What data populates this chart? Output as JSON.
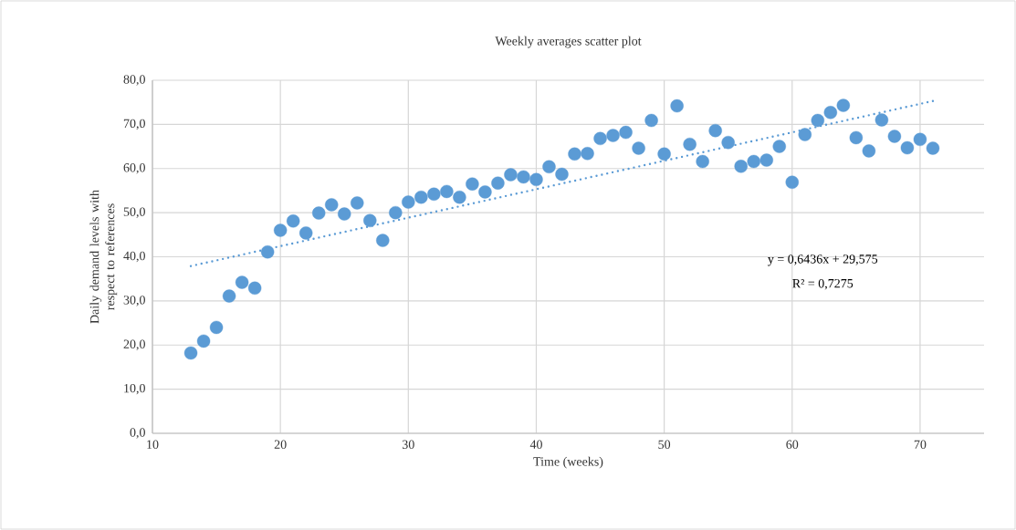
{
  "chart_data": {
    "type": "scatter",
    "title": "Weekly averages scatter plot",
    "xlabel": "Time (weeks)",
    "ylabel": "Daily demand levels with respect to references",
    "x": [
      13,
      14,
      15,
      16,
      17,
      18,
      19,
      20,
      21,
      22,
      23,
      24,
      25,
      26,
      27,
      28,
      29,
      30,
      31,
      32,
      33,
      34,
      35,
      36,
      37,
      38,
      39,
      40,
      41,
      42,
      43,
      44,
      45,
      46,
      47,
      48,
      49,
      50,
      51,
      52,
      53,
      54,
      55,
      56,
      57,
      58,
      59,
      60,
      61,
      62,
      63,
      64,
      65,
      66,
      67,
      68,
      69,
      70,
      71
    ],
    "series": [
      {
        "color": "#5b9bd5",
        "marker": "circle",
        "values": [
          18.2,
          20.9,
          24.0,
          31.1,
          34.2,
          32.9,
          41.1,
          46.0,
          48.1,
          45.4,
          49.9,
          51.8,
          49.7,
          52.2,
          48.2,
          43.7,
          50.0,
          52.4,
          53.5,
          54.2,
          54.8,
          53.5,
          56.5,
          54.7,
          56.7,
          58.6,
          58.1,
          57.5,
          60.4,
          58.7,
          63.3,
          63.4,
          66.8,
          67.5,
          68.2,
          64.6,
          70.9,
          63.3,
          74.2,
          65.5,
          61.6,
          68.6,
          65.9,
          60.5,
          61.6,
          61.9,
          65.0,
          56.9,
          67.7,
          70.9,
          72.7,
          74.3,
          67.0,
          64.0,
          71.0,
          67.3,
          64.7,
          66.6,
          64.6
        ]
      },
      {
        "type": "line",
        "color": "#5b9bd5",
        "line_style": "dotted",
        "marker": "none",
        "x": [
          13,
          71
        ],
        "values": [
          37.9,
          75.3
        ]
      }
    ],
    "annotations": [
      "y = 0,6436x + 29,575",
      "R² = 0,7275"
    ],
    "xlim": [
      10,
      75
    ],
    "ylim": [
      0,
      80
    ],
    "xticks": [
      10,
      20,
      30,
      40,
      50,
      60,
      70
    ],
    "yticks": [
      {
        "value": 0,
        "label": "0,0"
      },
      {
        "value": 10,
        "label": "10,0"
      },
      {
        "value": 20,
        "label": "20,0"
      },
      {
        "value": 30,
        "label": "30,0"
      },
      {
        "value": 40,
        "label": "40,0"
      },
      {
        "value": 50,
        "label": "50,0"
      },
      {
        "value": 60,
        "label": "60,0"
      },
      {
        "value": 70,
        "label": "70,0"
      },
      {
        "value": 80,
        "label": "80,0"
      }
    ],
    "grid": true
  }
}
